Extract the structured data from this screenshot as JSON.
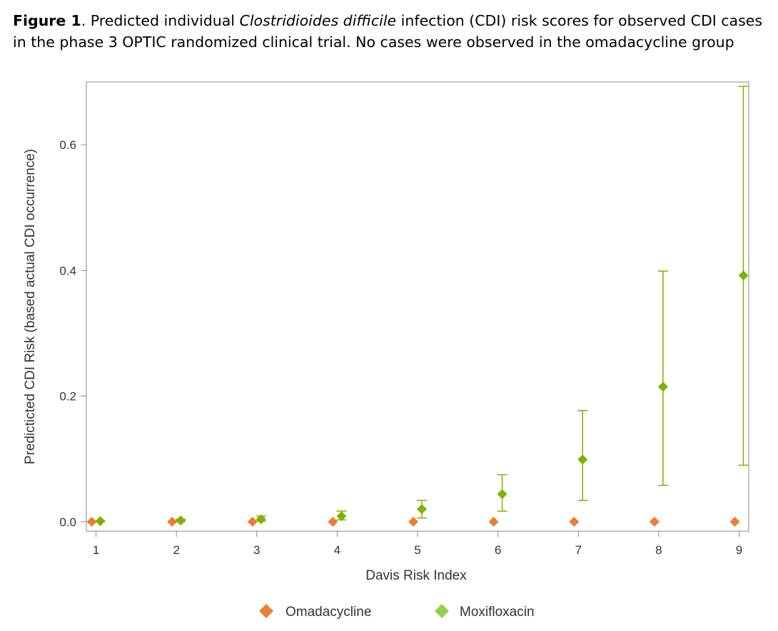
{
  "caption": {
    "label": "Figure 1",
    "text_before": ". Predicted individual ",
    "species": "Clostridioides difficile",
    "text_after": " infection (CDI) risk scores for observed CDI cases in the phase 3 OPTIC randomized clinical trial. No cases were observed in the omadacycline group"
  },
  "colors": {
    "omadacycline": "#ED7D31",
    "moxifloxacin": "#7DB200",
    "moxifloxacin_legend": "#92D050",
    "axis": "#888888"
  },
  "chart_data": {
    "type": "scatter",
    "xlabel": "Davis Risk Index",
    "ylabel": "Predicticted CDI Risk (based actual CDI occurrence)",
    "xlim": [
      0.88,
      9.12
    ],
    "ylim": [
      -0.015,
      0.7
    ],
    "x_ticks": [
      1,
      2,
      3,
      4,
      5,
      6,
      7,
      8,
      9
    ],
    "y_ticks": [
      0.0,
      0.2,
      0.4,
      0.6
    ],
    "y_tick_labels": [
      "0.0",
      "0.2",
      "0.4",
      "0.6"
    ],
    "legend_position": "bottom",
    "series": [
      {
        "name": "Omadacycline",
        "x": [
          1,
          2,
          3,
          4,
          5,
          6,
          7,
          8,
          9
        ],
        "y": [
          0.0,
          0.0,
          0.0,
          0.0,
          0.0,
          0.0,
          0.0,
          0.0,
          0.0
        ]
      },
      {
        "name": "Moxifloxacin",
        "x": [
          1,
          2,
          3,
          4,
          5,
          6,
          7,
          8,
          9
        ],
        "y": [
          0.001,
          0.002,
          0.004,
          0.009,
          0.02,
          0.044,
          0.099,
          0.215,
          0.392
        ],
        "lower": [
          0.0,
          0.0,
          0.001,
          0.003,
          0.006,
          0.017,
          0.034,
          0.058,
          0.09
        ],
        "upper": [
          0.001,
          0.004,
          0.009,
          0.017,
          0.034,
          0.075,
          0.177,
          0.399,
          0.693
        ]
      }
    ]
  }
}
